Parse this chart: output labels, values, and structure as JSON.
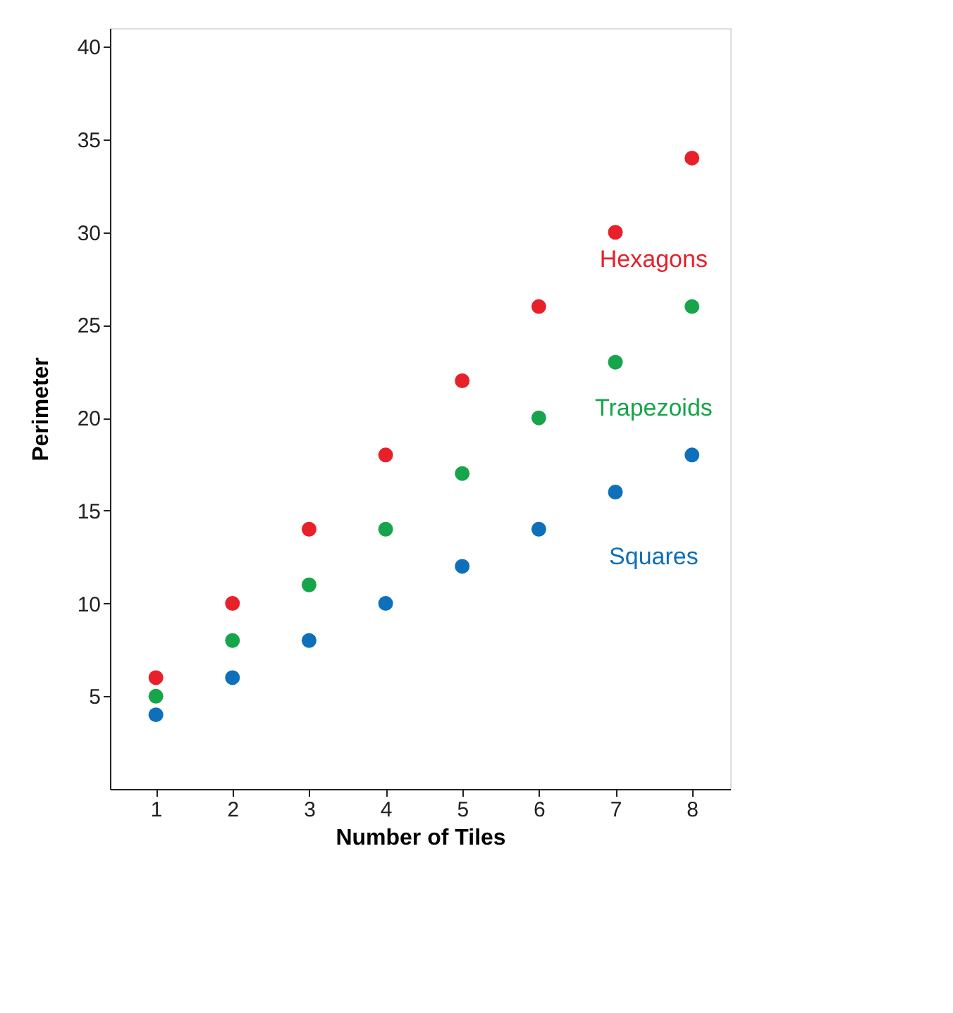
{
  "chart_data": {
    "type": "scatter",
    "xlabel": "Number of Tiles",
    "ylabel": "Perimeter",
    "x": [
      1,
      2,
      3,
      4,
      5,
      6,
      7,
      8
    ],
    "series": [
      {
        "name": "Hexagons",
        "color": "#e8202a",
        "values": [
          6,
          10,
          14,
          18,
          22,
          26,
          30,
          34
        ]
      },
      {
        "name": "Trapezoids",
        "color": "#16a54a",
        "values": [
          5,
          8,
          11,
          14,
          17,
          20,
          23,
          26
        ]
      },
      {
        "name": "Squares",
        "color": "#0e6fba",
        "values": [
          4,
          6,
          8,
          10,
          12,
          14,
          16,
          18
        ]
      }
    ],
    "xlim": [
      0.4,
      8.5
    ],
    "ylim": [
      0,
      41
    ],
    "xticks": [
      1,
      2,
      3,
      4,
      5,
      6,
      7,
      8
    ],
    "yticks": [
      5,
      10,
      15,
      20,
      25,
      30,
      35,
      40
    ],
    "grid": false,
    "marker": "circle",
    "legend": false
  }
}
